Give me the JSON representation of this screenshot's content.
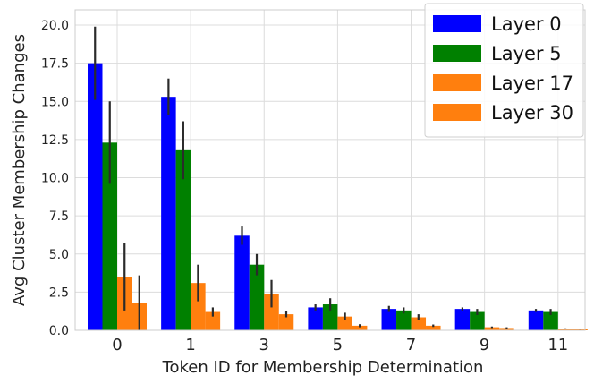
{
  "chart_data": {
    "type": "bar",
    "xlabel": "Token ID for Membership Determination",
    "ylabel": "Avg Cluster Membership Changes",
    "categories": [
      "0",
      "1",
      "3",
      "5",
      "7",
      "9",
      "11"
    ],
    "ylim": [
      0,
      21
    ],
    "yticks": [
      "0.0",
      "2.5",
      "5.0",
      "7.5",
      "10.0",
      "12.5",
      "15.0",
      "17.5",
      "20.0"
    ],
    "grid": true,
    "legend_position": "top-right",
    "series": [
      {
        "name": "Layer 0",
        "color": "#0000ff",
        "values": [
          17.5,
          15.3,
          6.2,
          1.5,
          1.4,
          1.4,
          1.3
        ],
        "errors": [
          2.4,
          1.2,
          0.6,
          0.2,
          0.2,
          0.1,
          0.1
        ]
      },
      {
        "name": "Layer 5",
        "color": "#008000",
        "values": [
          12.3,
          11.8,
          4.3,
          1.7,
          1.3,
          1.2,
          1.2
        ],
        "errors": [
          2.7,
          1.9,
          0.7,
          0.4,
          0.2,
          0.2,
          0.2
        ]
      },
      {
        "name": "Layer 17",
        "color": "#ff7f0e",
        "values": [
          3.5,
          3.1,
          2.4,
          0.9,
          0.85,
          0.2,
          0.1
        ],
        "errors": [
          2.2,
          1.2,
          0.9,
          0.25,
          0.2,
          0.05,
          0.03
        ]
      },
      {
        "name": "Layer 30",
        "color": "#ff7f0e",
        "values": [
          1.8,
          1.2,
          1.05,
          0.3,
          0.3,
          0.15,
          0.08
        ],
        "errors": [
          1.8,
          0.3,
          0.2,
          0.1,
          0.08,
          0.05,
          0.03
        ]
      }
    ]
  }
}
